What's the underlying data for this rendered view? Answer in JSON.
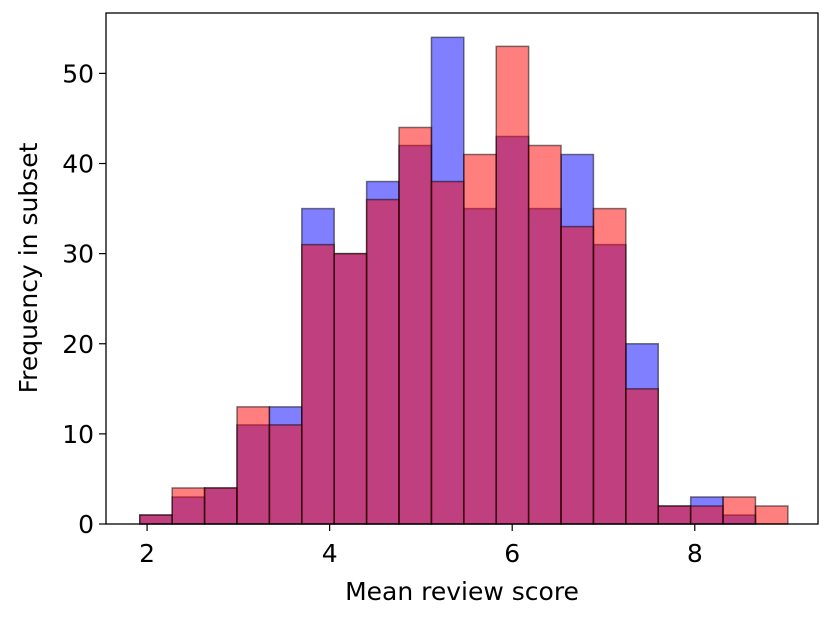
{
  "chart_data": {
    "type": "bar",
    "subtype": "overlapping-histogram",
    "title": "",
    "xlabel": "Mean review score",
    "ylabel": "Frequency in subset",
    "xlim": [
      1.55,
      9.35
    ],
    "ylim": [
      0,
      56.7
    ],
    "xticks": [
      2,
      4,
      6,
      8
    ],
    "yticks": [
      0,
      10,
      20,
      30,
      40,
      50
    ],
    "grid": false,
    "legend": "none",
    "bin_width": 0.355,
    "series": [
      {
        "color": "#0000ff",
        "alpha": 0.5,
        "bins": [
          {
            "x0": 1.92,
            "count": 1
          },
          {
            "x0": 2.275,
            "count": 3
          },
          {
            "x0": 2.63,
            "count": 4
          },
          {
            "x0": 2.985,
            "count": 11
          },
          {
            "x0": 3.34,
            "count": 13
          },
          {
            "x0": 3.695,
            "count": 35
          },
          {
            "x0": 4.05,
            "count": 30
          },
          {
            "x0": 4.405,
            "count": 38
          },
          {
            "x0": 4.76,
            "count": 42
          },
          {
            "x0": 5.115,
            "count": 54
          },
          {
            "x0": 5.47,
            "count": 35
          },
          {
            "x0": 5.825,
            "count": 43
          },
          {
            "x0": 6.18,
            "count": 35
          },
          {
            "x0": 6.535,
            "count": 41
          },
          {
            "x0": 6.89,
            "count": 31
          },
          {
            "x0": 7.245,
            "count": 20
          },
          {
            "x0": 7.6,
            "count": 2
          },
          {
            "x0": 7.955,
            "count": 3
          },
          {
            "x0": 8.31,
            "count": 1
          }
        ]
      },
      {
        "color": "#ff0000",
        "alpha": 0.5,
        "bins": [
          {
            "x0": 1.92,
            "count": 1
          },
          {
            "x0": 2.275,
            "count": 4
          },
          {
            "x0": 2.63,
            "count": 4
          },
          {
            "x0": 2.985,
            "count": 13
          },
          {
            "x0": 3.34,
            "count": 11
          },
          {
            "x0": 3.695,
            "count": 31
          },
          {
            "x0": 4.05,
            "count": 30
          },
          {
            "x0": 4.405,
            "count": 36
          },
          {
            "x0": 4.76,
            "count": 44
          },
          {
            "x0": 5.115,
            "count": 38
          },
          {
            "x0": 5.47,
            "count": 41
          },
          {
            "x0": 5.825,
            "count": 53
          },
          {
            "x0": 6.18,
            "count": 42
          },
          {
            "x0": 6.535,
            "count": 33
          },
          {
            "x0": 6.89,
            "count": 35
          },
          {
            "x0": 7.245,
            "count": 15
          },
          {
            "x0": 7.6,
            "count": 2
          },
          {
            "x0": 7.955,
            "count": 2
          },
          {
            "x0": 8.31,
            "count": 3
          },
          {
            "x0": 8.665,
            "count": 2
          }
        ]
      }
    ]
  }
}
